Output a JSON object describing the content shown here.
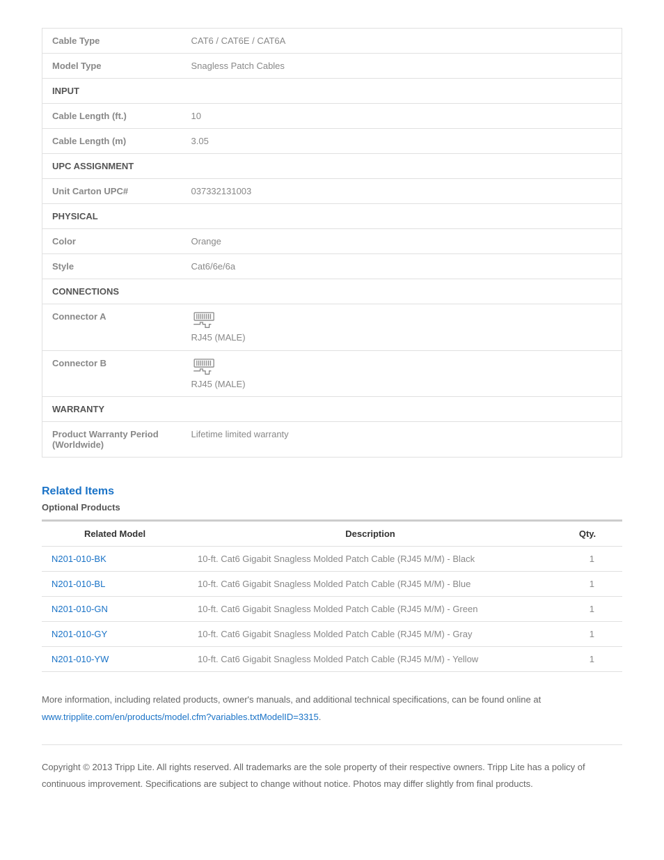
{
  "specs": {
    "cable_type": {
      "label": "Cable Type",
      "value": "CAT6 / CAT6E / CAT6A"
    },
    "model_type": {
      "label": "Model Type",
      "value": "Snagless Patch Cables"
    },
    "section_input": "INPUT",
    "cable_length_ft": {
      "label": "Cable Length (ft.)",
      "value": "10"
    },
    "cable_length_m": {
      "label": "Cable Length (m)",
      "value": "3.05"
    },
    "section_upc": "UPC ASSIGNMENT",
    "unit_carton_upc": {
      "label": "Unit Carton UPC#",
      "value": "037332131003"
    },
    "section_physical": "PHYSICAL",
    "color": {
      "label": "Color",
      "value": "Orange"
    },
    "style": {
      "label": "Style",
      "value": "Cat6/6e/6a"
    },
    "section_connections": "CONNECTIONS",
    "connector_a": {
      "label": "Connector A",
      "value": "RJ45 (MALE)"
    },
    "connector_b": {
      "label": "Connector B",
      "value": "RJ45 (MALE)"
    },
    "section_warranty": "WARRANTY",
    "warranty": {
      "label": "Product Warranty Period (Worldwide)",
      "value": "Lifetime limited warranty"
    }
  },
  "related": {
    "heading": "Related Items",
    "subheading": "Optional Products",
    "cols": {
      "model": "Related Model",
      "desc": "Description",
      "qty": "Qty."
    },
    "rows": [
      {
        "model": "N201-010-BK",
        "desc": "10-ft. Cat6 Gigabit Snagless Molded Patch Cable (RJ45 M/M) - Black",
        "qty": "1"
      },
      {
        "model": "N201-010-BL",
        "desc": "10-ft. Cat6 Gigabit Snagless Molded Patch Cable (RJ45 M/M) - Blue",
        "qty": "1"
      },
      {
        "model": "N201-010-GN",
        "desc": "10-ft. Cat6 Gigabit Snagless Molded Patch Cable (RJ45 M/M) - Green",
        "qty": "1"
      },
      {
        "model": "N201-010-GY",
        "desc": "10-ft. Cat6 Gigabit Snagless Molded Patch Cable (RJ45 M/M) - Gray",
        "qty": "1"
      },
      {
        "model": "N201-010-YW",
        "desc": "10-ft. Cat6 Gigabit Snagless Molded Patch Cable (RJ45 M/M) - Yellow",
        "qty": "1"
      }
    ]
  },
  "more_info": {
    "text": "More information, including related products, owner's manuals, and additional technical specifications, can be found online at ",
    "link": "www.tripplite.com/en/products/model.cfm?variables.txtModelID=3315"
  },
  "copyright": "Copyright © 2013 Tripp Lite. All rights reserved. All trademarks are the sole property of their respective owners. Tripp Lite has a policy of continuous improvement. Specifications are subject to change without notice. Photos may differ slightly from final products."
}
